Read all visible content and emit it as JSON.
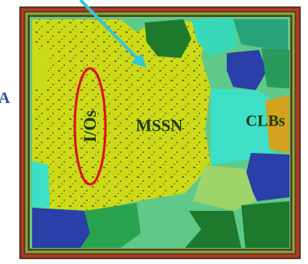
{
  "labels": {
    "edge": "A",
    "io": "I/Os",
    "mssn": "MSSN",
    "clbs": "CLBs"
  }
}
